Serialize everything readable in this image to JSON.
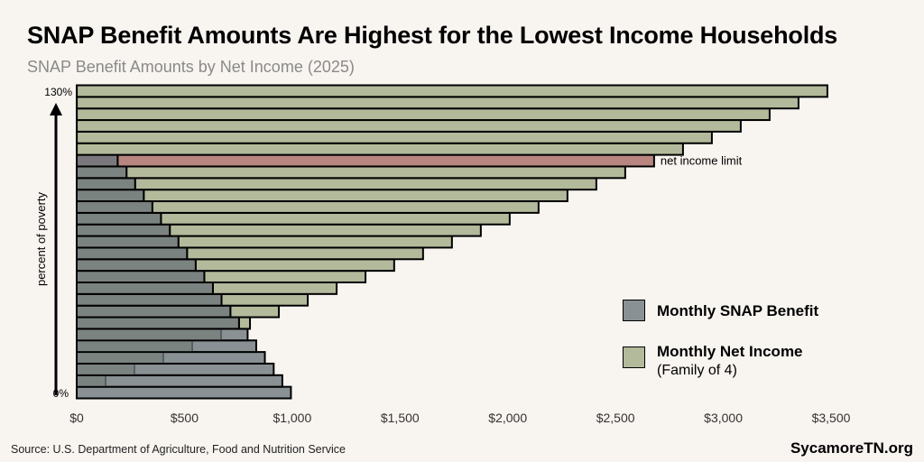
{
  "title": "SNAP Benefit Amounts Are Highest for the Lowest Income Households",
  "subtitle": "SNAP Benefit Amounts by Net Income (2025)",
  "source": "Source: U.S. Department of Agriculture, Food and Nutrition Service",
  "brand": "SycamoreTN.org",
  "colors": {
    "benefit": "#8a9194",
    "overlap": "#7b8381",
    "income": "#b3ba9c",
    "limit": "#b88580",
    "background": "#f8f4f0"
  },
  "chart_data": {
    "type": "bar",
    "orientation": "horizontal",
    "ylabel": "percent of poverty",
    "y_tick_labels": [
      "0%",
      "130%"
    ],
    "x_tick_labels": [
      "$0",
      "$500",
      "$1,000",
      "$1,500",
      "$2,000",
      "$2,500",
      "$3,000",
      "$3,500"
    ],
    "x_ticks": [
      0,
      500,
      1000,
      1500,
      2000,
      2500,
      3000,
      3500
    ],
    "xlim": [
      0,
      3500
    ],
    "grid": false,
    "legend_placement": "bottom-right",
    "annotation": {
      "text": "net income limit",
      "at_percent": 100
    },
    "categories": [
      0,
      5,
      10,
      15,
      20,
      25,
      30,
      35,
      40,
      45,
      50,
      55,
      60,
      65,
      70,
      75,
      80,
      85,
      90,
      95,
      100,
      105,
      110,
      115,
      120,
      125,
      130
    ],
    "series": [
      {
        "name": "Monthly SNAP Benefit",
        "values": [
          994,
          954,
          914,
          873,
          833,
          793,
          753,
          713,
          672,
          632,
          592,
          552,
          512,
          472,
          432,
          391,
          351,
          311,
          271,
          231,
          190,
          0,
          0,
          0,
          0,
          0,
          0
        ]
      },
      {
        "name": "Monthly Net Income",
        "sub": "(Family of 4)",
        "values": [
          0,
          134,
          268,
          402,
          536,
          670,
          804,
          938,
          1072,
          1206,
          1340,
          1473,
          1607,
          1741,
          1875,
          2009,
          2143,
          2277,
          2411,
          2545,
          2679,
          2813,
          2947,
          3081,
          3215,
          3349,
          3483
        ]
      }
    ]
  }
}
